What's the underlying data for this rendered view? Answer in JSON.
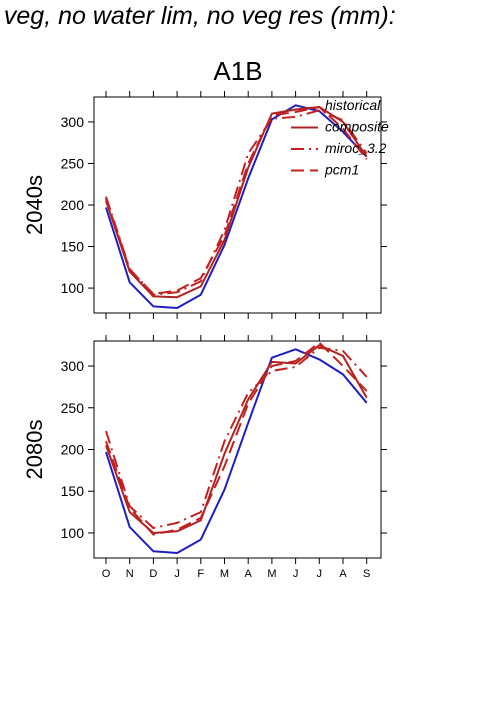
{
  "page": {
    "title": "f veg, no water lim, no veg res (mm):"
  },
  "chart_data": [
    {
      "type": "line",
      "title": "A1B",
      "ylabel": "2040s",
      "categories": [
        "O",
        "N",
        "D",
        "J",
        "F",
        "M",
        "A",
        "M",
        "J",
        "J",
        "A",
        "S"
      ],
      "ylim": [
        70,
        330
      ],
      "yticks": [
        100,
        150,
        200,
        250,
        300
      ],
      "grid": false,
      "legend": {
        "placement": "top-right"
      },
      "series": [
        {
          "name": "historical",
          "color": "#1f1fbf",
          "dash": "solid",
          "values": [
            197,
            107,
            78,
            76,
            92,
            152,
            232,
            303,
            320,
            313,
            288,
            258
          ]
        },
        {
          "name": "composite",
          "color": "#b22222",
          "dash": "solid",
          "values": [
            205,
            120,
            90,
            89,
            102,
            158,
            245,
            310,
            315,
            318,
            300,
            258
          ]
        },
        {
          "name": "miroc_3.2",
          "color": "#c42020",
          "dash": "dashdot",
          "values": [
            210,
            123,
            92,
            95,
            108,
            170,
            262,
            304,
            306,
            314,
            302,
            262
          ]
        },
        {
          "name": "pcm1",
          "color": "#c42020",
          "dash": "dashed",
          "values": [
            208,
            122,
            93,
            97,
            112,
            163,
            250,
            308,
            312,
            318,
            292,
            255
          ]
        }
      ]
    },
    {
      "type": "line",
      "title": "",
      "ylabel": "2080s",
      "categories": [
        "O",
        "N",
        "D",
        "J",
        "F",
        "M",
        "A",
        "M",
        "J",
        "J",
        "A",
        "S"
      ],
      "ylim": [
        70,
        330
      ],
      "yticks": [
        100,
        150,
        200,
        250,
        300
      ],
      "grid": false,
      "series": [
        {
          "name": "historical",
          "color": "#1f1fbf",
          "dash": "solid",
          "values": [
            197,
            107,
            78,
            76,
            92,
            152,
            232,
            310,
            320,
            308,
            290,
            256
          ]
        },
        {
          "name": "composite",
          "color": "#b22222",
          "dash": "solid",
          "values": [
            205,
            125,
            100,
            102,
            115,
            195,
            260,
            305,
            303,
            325,
            312,
            262
          ]
        },
        {
          "name": "miroc_3.2",
          "color": "#c42020",
          "dash": "dashdot",
          "values": [
            222,
            132,
            106,
            112,
            125,
            210,
            268,
            294,
            299,
            322,
            318,
            287
          ]
        },
        {
          "name": "pcm1",
          "color": "#c42020",
          "dash": "dashed",
          "values": [
            210,
            130,
            98,
            104,
            118,
            180,
            255,
            300,
            306,
            328,
            300,
            270
          ]
        }
      ]
    }
  ]
}
